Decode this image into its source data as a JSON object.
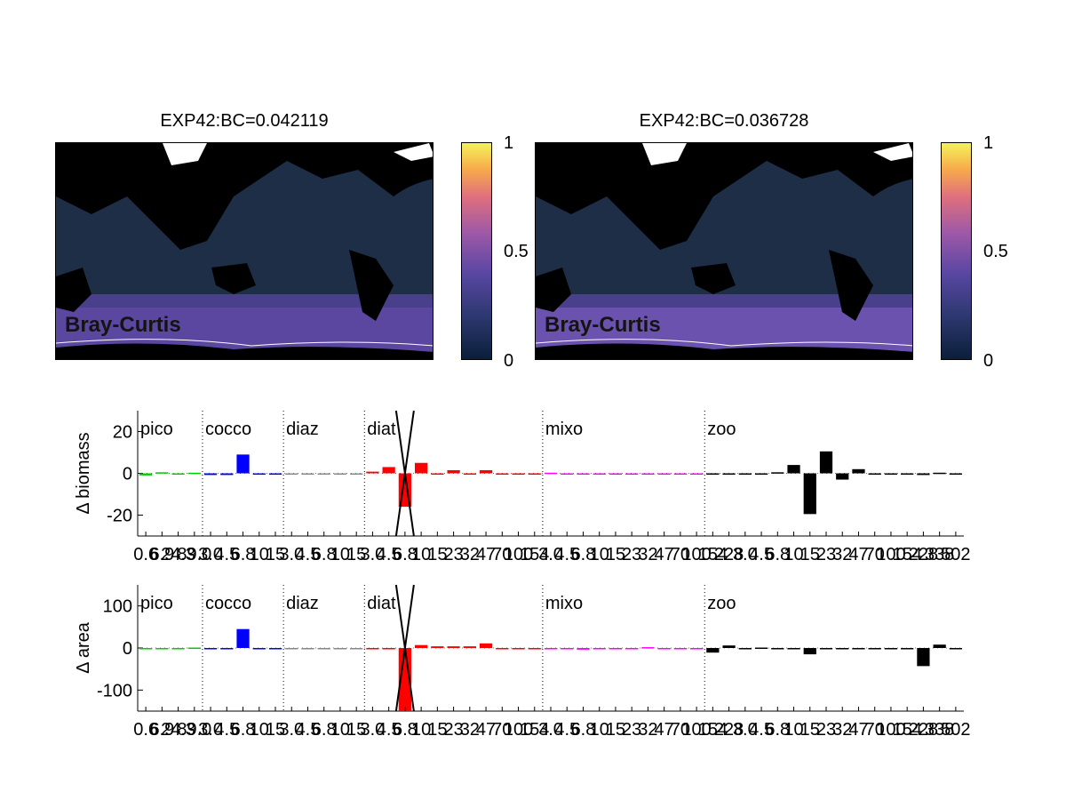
{
  "maps": [
    {
      "title": "EXP42:BC=0.042119",
      "label": "Bray-Curtis"
    },
    {
      "title": "EXP42:BC=0.036728",
      "label": "Bray-Curtis"
    }
  ],
  "colorbar": {
    "ticks": [
      "1",
      "0.5",
      "0"
    ]
  },
  "chart_data": [
    {
      "type": "bar",
      "ylabel": "Δ biomass",
      "ylim": [
        -30,
        30
      ],
      "yticks": [
        20,
        0,
        -20
      ],
      "groups": [
        "pico",
        "cocco",
        "diaz",
        "diat",
        "mixo",
        "zoo"
      ],
      "group_starts": [
        0,
        4,
        9,
        14,
        25,
        35
      ],
      "colors": [
        "#00cc00",
        "#0000ff",
        "#888888",
        "#ff0000",
        "#ff00ff",
        "#000000"
      ],
      "values": [
        -1,
        0.5,
        0,
        0.3,
        -0.8,
        -0.8,
        9,
        -0.3,
        -0.3,
        0,
        0,
        0,
        0,
        0,
        0.8,
        3,
        -16,
        5,
        -0.3,
        1.5,
        -0.3,
        1.5,
        0,
        0,
        0,
        0.3,
        -0.5,
        0,
        -0.5,
        -0.3,
        0,
        0,
        0,
        0,
        0,
        0,
        0,
        0,
        0,
        0.5,
        4,
        -19.5,
        10.5,
        -3,
        2,
        0,
        0,
        -0.3,
        -0.8,
        0.3,
        0
      ],
      "xtick_labels": [
        "0.6",
        "6.9",
        "24.3",
        "89.0",
        "3.0",
        "4.5",
        "6.8",
        "10",
        "15",
        "3.0",
        "4.5",
        "6.8",
        "10",
        "15",
        "3.0",
        "4.5",
        "6.8",
        "10",
        "15",
        "23",
        "32",
        "47",
        "70",
        "100",
        "154",
        "3.0",
        "4.5",
        "6.8",
        "10",
        "15",
        "23",
        "32",
        "47",
        "70",
        "100",
        "154",
        "228",
        "3.0",
        "4.5",
        "6.8",
        "10",
        "15",
        "23",
        "32",
        "47",
        "70",
        "100",
        "154",
        "228",
        "338",
        "502"
      ],
      "cross_index": 16
    },
    {
      "type": "bar",
      "ylabel": "Δ area",
      "ylim": [
        -150,
        150
      ],
      "yticks": [
        100,
        0,
        -100
      ],
      "groups": [
        "pico",
        "cocco",
        "diaz",
        "diat",
        "mixo",
        "zoo"
      ],
      "group_starts": [
        0,
        4,
        9,
        14,
        25,
        35
      ],
      "colors": [
        "#00cc00",
        "#0000ff",
        "#888888",
        "#ff0000",
        "#ff00ff",
        "#000000"
      ],
      "values": [
        0,
        0,
        0,
        1,
        -2,
        -2,
        45,
        -2,
        -1,
        0,
        0,
        0,
        0,
        0,
        0,
        0,
        -150,
        7,
        4,
        4,
        4,
        11,
        0,
        0,
        0,
        -1,
        -2,
        -4,
        -2,
        -2,
        -1,
        2,
        0,
        0,
        0,
        -11,
        6,
        0,
        1,
        0,
        0,
        -15,
        0,
        0,
        0,
        0,
        0,
        -1,
        -43,
        8,
        -3
      ],
      "xtick_labels": [
        "0.6",
        "6.9",
        "24.3",
        "89.0",
        "3.0",
        "4.5",
        "6.8",
        "10",
        "15",
        "3.0",
        "4.5",
        "6.8",
        "10",
        "15",
        "3.0",
        "4.5",
        "6.8",
        "10",
        "15",
        "23",
        "32",
        "47",
        "70",
        "100",
        "154",
        "3.0",
        "4.5",
        "6.8",
        "10",
        "15",
        "23",
        "32",
        "47",
        "70",
        "100",
        "154",
        "228",
        "3.0",
        "4.5",
        "6.8",
        "10",
        "15",
        "23",
        "32",
        "47",
        "70",
        "100",
        "154",
        "228",
        "338",
        "502"
      ],
      "cross_index": 16
    }
  ]
}
